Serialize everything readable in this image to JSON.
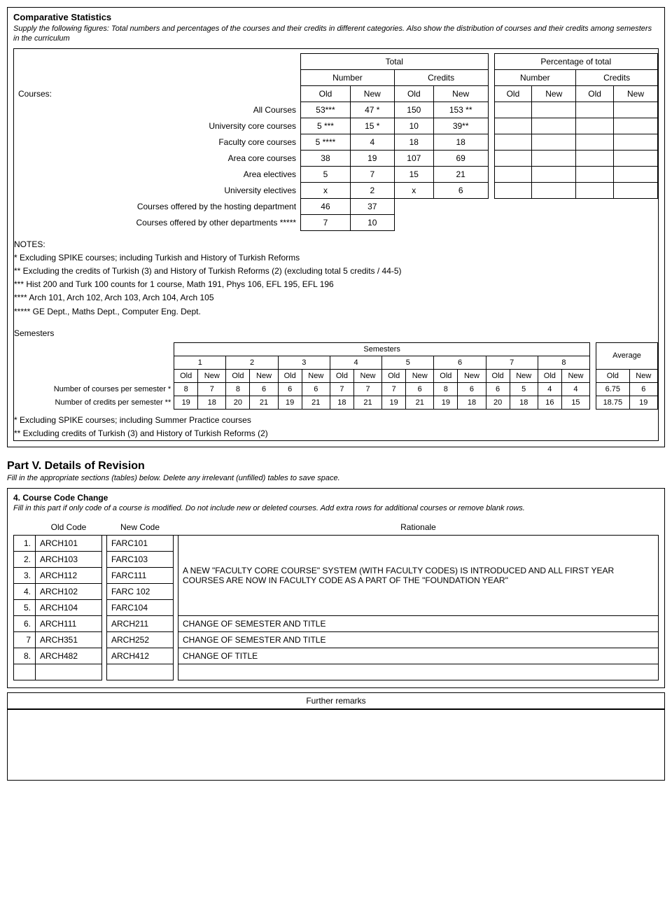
{
  "comparative": {
    "title": "Comparative Statistics",
    "desc": "Supply the following figures: Total numbers and percentages of the courses and their credits in different categories. Also show the distribution of courses and their credits among semesters in the curriculum",
    "groupHeaders": {
      "total": "Total",
      "pct": "Percentage of total",
      "number": "Number",
      "credits": "Credits",
      "old": "Old",
      "new": "New"
    },
    "coursesLabel": "Courses:",
    "rows": [
      {
        "label": "All Courses",
        "cells": [
          "53***",
          "47 *",
          "150",
          "153 **",
          "",
          "",
          "",
          ""
        ]
      },
      {
        "label": "University core courses",
        "cells": [
          "5 ***",
          "15 *",
          "10",
          "39**",
          "",
          "",
          "",
          ""
        ]
      },
      {
        "label": "Faculty core courses",
        "cells": [
          "5 ****",
          "4",
          "18",
          "18",
          "",
          "",
          "",
          ""
        ]
      },
      {
        "label": "Area core courses",
        "cells": [
          "38",
          "19",
          "107",
          "69",
          "",
          "",
          "",
          ""
        ]
      },
      {
        "label": "Area electives",
        "cells": [
          "5",
          "7",
          "15",
          "21",
          "",
          "",
          "",
          ""
        ]
      },
      {
        "label": "University electives",
        "cells": [
          "x",
          "2",
          "x",
          "6",
          "",
          "",
          "",
          ""
        ]
      },
      {
        "label": "Courses offered by the hosting department",
        "cells": [
          "46",
          "37",
          "",
          "",
          "",
          "",
          "",
          ""
        ],
        "clip": 2
      },
      {
        "label": "Courses offered by other departments *****",
        "cells": [
          "7",
          "10",
          "",
          "",
          "",
          "",
          "",
          ""
        ],
        "clip": 2
      }
    ]
  },
  "notes": {
    "title": "NOTES:",
    "lines": [
      "* Excluding SPIKE courses; including Turkish and History of Turkish Reforms",
      "** Excluding the credits of Turkish (3) and History of Turkish Reforms (2) (excluding total 5 credits / 44-5)",
      "*** Hist 200 and Turk 100 counts for 1 course, Math 191, Phys 106, EFL 195, EFL 196",
      "**** Arch 101, Arch 102, Arch 103, Arch 104, Arch 105",
      "***** GE Dept., Maths Dept., Computer Eng. Dept."
    ]
  },
  "sem": {
    "title": "Semesters",
    "header": "Semesters",
    "avg": "Average",
    "nums": [
      "1",
      "2",
      "3",
      "4",
      "5",
      "6",
      "7",
      "8"
    ],
    "on": {
      "old": "Old",
      "new": "New"
    },
    "row1": {
      "label": "Number of courses per semester *",
      "cells": [
        "8",
        "7",
        "8",
        "6",
        "6",
        "6",
        "7",
        "7",
        "7",
        "6",
        "8",
        "6",
        "6",
        "5",
        "4",
        "4"
      ],
      "avg": [
        "6.75",
        "6"
      ]
    },
    "row2": {
      "label": "Number of credits per semester **",
      "cells": [
        "19",
        "18",
        "20",
        "21",
        "19",
        "21",
        "18",
        "21",
        "19",
        "21",
        "19",
        "18",
        "20",
        "18",
        "16",
        "15"
      ],
      "avg": [
        "18.75",
        "19"
      ]
    },
    "foot": [
      "* Excluding SPIKE courses; including Summer Practice courses",
      "** Excluding credits of Turkish (3) and History of Turkish Reforms (2)"
    ]
  },
  "part5": {
    "title": "Part V. Details of Revision",
    "desc": "Fill in the appropriate sections (tables) below. Delete any irrelevant (unfilled) tables to save space.",
    "sec": {
      "title": "4. Course Code Change",
      "desc": "Fill in this part if only code of a course is modified. Do not include new or deleted courses. Add extra rows for additional courses or remove blank rows.",
      "cols": {
        "old": "Old Code",
        "new": "New Code",
        "rat": "Rationale"
      },
      "bigRat": "A NEW \"FACULTY CORE COURSE\" SYSTEM (WITH FACULTY CODES) IS INTRODUCED AND ALL FIRST YEAR COURSES ARE NOW IN FACULTY CODE AS A PART OF THE \"FOUNDATION YEAR\"",
      "rows": [
        {
          "n": "1.",
          "old": "ARCH101",
          "new": "FARC101"
        },
        {
          "n": "2.",
          "old": "ARCH103",
          "new": "FARC103"
        },
        {
          "n": "3.",
          "old": "ARCH112",
          "new": "FARC111"
        },
        {
          "n": "4.",
          "old": "ARCH102",
          "new": "FARC 102"
        },
        {
          "n": "5.",
          "old": "ARCH104",
          "new": "FARC104"
        },
        {
          "n": "6.",
          "old": "ARCH111",
          "new": "ARCH211",
          "rat": "CHANGE OF SEMESTER AND TITLE"
        },
        {
          "n": "7",
          "old": "ARCH351",
          "new": "ARCH252",
          "rat": "CHANGE OF SEMESTER AND TITLE"
        },
        {
          "n": "8.",
          "old": "ARCH482",
          "new": "ARCH412",
          "rat": "CHANGE OF TITLE"
        }
      ],
      "blank": 1
    },
    "fr": "Further remarks"
  }
}
